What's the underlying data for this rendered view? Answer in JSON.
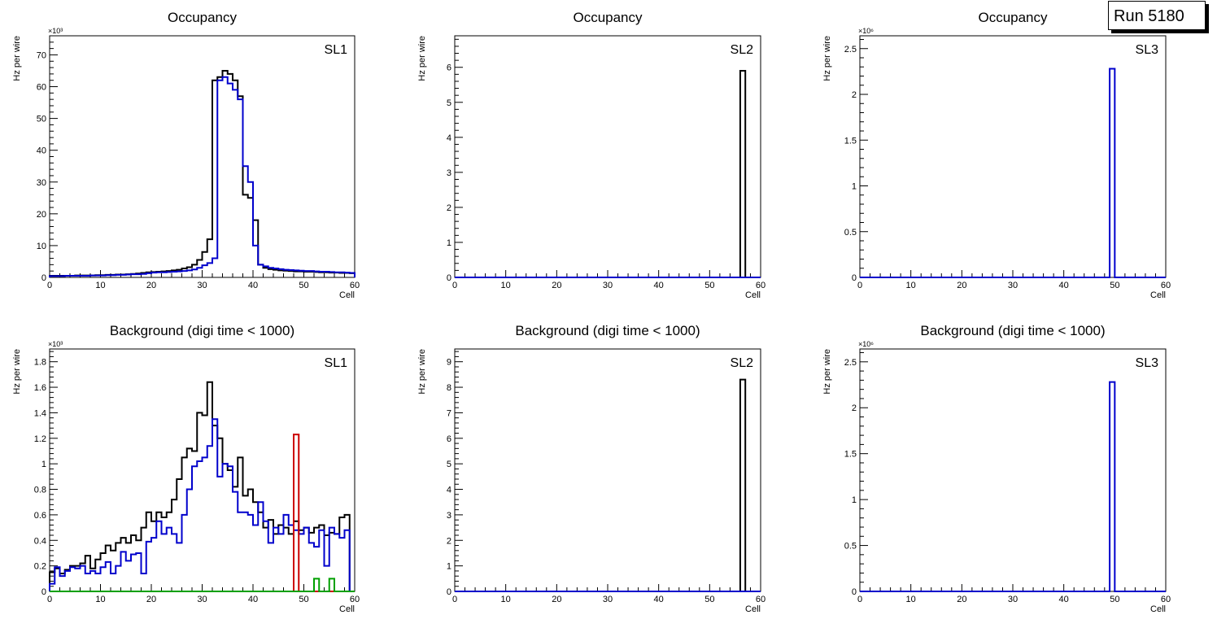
{
  "run_label": "Run 5180",
  "colors": {
    "black": "#000000",
    "blue": "#0000cc",
    "red": "#cc0000",
    "green": "#00a000"
  },
  "chart_data": [
    {
      "type": "histogram",
      "title": "Occupancy",
      "label": "SL1",
      "xlabel": "Cell",
      "ylabel": "Hz per wire",
      "exponent": "×10³",
      "xlim": [
        0,
        60
      ],
      "ylim": [
        0,
        76
      ],
      "xticks": [
        0,
        10,
        20,
        30,
        40,
        50,
        60
      ],
      "yticks": [
        0,
        10,
        20,
        30,
        40,
        50,
        60,
        70
      ],
      "series": [
        {
          "color": "black",
          "values": [
            0.5,
            0.5,
            0.5,
            0.5,
            0.5,
            0.6,
            0.6,
            0.6,
            0.6,
            0.7,
            0.7,
            0.8,
            0.8,
            0.9,
            0.9,
            1.0,
            1.1,
            1.2,
            1.4,
            1.6,
            1.7,
            1.8,
            1.9,
            2.0,
            2.2,
            2.4,
            2.8,
            3.2,
            4.0,
            5.5,
            8.0,
            12.0,
            62.0,
            63.0,
            65.0,
            64.0,
            62.0,
            57.0,
            26.0,
            25.0,
            18.0,
            4.0,
            3.0,
            2.6,
            2.4,
            2.2,
            2.1,
            2.0,
            1.9,
            1.9,
            1.8,
            1.8,
            1.7,
            1.6,
            1.6,
            1.5,
            1.5,
            1.4,
            1.4,
            1.3
          ]
        },
        {
          "color": "blue",
          "values": [
            0.4,
            0.4,
            0.4,
            0.5,
            0.5,
            0.5,
            0.5,
            0.5,
            0.6,
            0.6,
            0.6,
            0.7,
            0.7,
            0.8,
            0.8,
            0.9,
            1.0,
            1.0,
            1.1,
            1.3,
            1.5,
            1.6,
            1.6,
            1.7,
            1.8,
            1.9,
            2.0,
            2.2,
            2.5,
            3.0,
            3.8,
            4.5,
            6.0,
            62.0,
            63.0,
            61.0,
            59.0,
            56.0,
            35.0,
            30.0,
            10.0,
            4.0,
            3.5,
            3.0,
            2.8,
            2.6,
            2.4,
            2.3,
            2.2,
            2.1,
            2.0,
            2.0,
            1.9,
            1.8,
            1.8,
            1.7,
            1.6,
            1.6,
            1.5,
            1.4
          ]
        },
        {
          "color": "red",
          "values": []
        },
        {
          "color": "green",
          "values": []
        }
      ]
    },
    {
      "type": "histogram",
      "title": "Occupancy",
      "label": "SL2",
      "xlabel": "Cell",
      "ylabel": "Hz per wire",
      "exponent": "",
      "xlim": [
        0,
        60
      ],
      "ylim": [
        0,
        6.9
      ],
      "xticks": [
        0,
        10,
        20,
        30,
        40,
        50,
        60
      ],
      "yticks": [
        0,
        1,
        2,
        3,
        4,
        5,
        6
      ],
      "series": [
        {
          "color": "black",
          "values": [
            0,
            0,
            0,
            0,
            0,
            0,
            0,
            0,
            0,
            0,
            0,
            0,
            0,
            0,
            0,
            0,
            0,
            0,
            0,
            0,
            0,
            0,
            0,
            0,
            0,
            0,
            0,
            0,
            0,
            0,
            0,
            0,
            0,
            0,
            0,
            0,
            0,
            0,
            0,
            0,
            0,
            0,
            0,
            0,
            0,
            0,
            0,
            0,
            0,
            0,
            0,
            0,
            0,
            0,
            0,
            0,
            5.9,
            0,
            0,
            0
          ]
        },
        {
          "color": "blue",
          "values": [
            0,
            0,
            0,
            0,
            0,
            0,
            0,
            0,
            0,
            0,
            0,
            0,
            0,
            0,
            0,
            0,
            0,
            0,
            0,
            0,
            0,
            0,
            0,
            0,
            0,
            0,
            0,
            0,
            0,
            0,
            0,
            0,
            0,
            0,
            0,
            0,
            0,
            0,
            0,
            0,
            0,
            0,
            0,
            0,
            0,
            0,
            0,
            0,
            0,
            0,
            0,
            0,
            0,
            0,
            0,
            0,
            0,
            0,
            0,
            0
          ]
        }
      ]
    },
    {
      "type": "histogram",
      "title": "Occupancy",
      "label": "SL3",
      "xlabel": "Cell",
      "ylabel": "Hz per wire",
      "exponent": "×10⁶",
      "xlim": [
        0,
        60
      ],
      "ylim": [
        0,
        2.64
      ],
      "xticks": [
        0,
        10,
        20,
        30,
        40,
        50,
        60
      ],
      "yticks": [
        0,
        0.5,
        1,
        1.5,
        2,
        2.5
      ],
      "series": [
        {
          "color": "blue",
          "values": [
            0,
            0,
            0,
            0,
            0,
            0,
            0,
            0,
            0,
            0,
            0,
            0,
            0,
            0,
            0,
            0,
            0,
            0,
            0,
            0,
            0,
            0,
            0,
            0,
            0,
            0,
            0,
            0,
            0,
            0,
            0,
            0,
            0,
            0,
            0,
            0,
            0,
            0,
            0,
            0,
            0,
            0,
            0,
            0,
            0,
            0,
            0,
            0,
            0,
            2.28,
            0,
            0,
            0,
            0,
            0,
            0,
            0,
            0,
            0,
            0
          ]
        }
      ]
    },
    {
      "type": "histogram",
      "title": "Background (digi time < 1000)",
      "label": "SL1",
      "xlabel": "Cell",
      "ylabel": "Hz per wire",
      "exponent": "×10³",
      "xlim": [
        0,
        60
      ],
      "ylim": [
        0,
        1.9
      ],
      "xticks": [
        0,
        10,
        20,
        30,
        40,
        50,
        60
      ],
      "yticks": [
        0,
        0.2,
        0.4,
        0.6,
        0.8,
        1,
        1.2,
        1.4,
        1.6,
        1.8
      ],
      "series": [
        {
          "color": "black",
          "values": [
            0.15,
            0.18,
            0.14,
            0.17,
            0.2,
            0.2,
            0.22,
            0.28,
            0.18,
            0.25,
            0.3,
            0.36,
            0.32,
            0.38,
            0.42,
            0.38,
            0.44,
            0.4,
            0.5,
            0.62,
            0.55,
            0.62,
            0.58,
            0.62,
            0.72,
            0.88,
            1.05,
            1.12,
            1.1,
            1.4,
            1.38,
            1.64,
            1.3,
            1.2,
            1.0,
            0.95,
            0.82,
            1.05,
            0.75,
            0.8,
            0.7,
            0.62,
            0.5,
            0.56,
            0.45,
            0.52,
            0.5,
            0.45,
            0.55,
            0.48,
            0.5,
            0.46,
            0.5,
            0.52,
            0.44,
            0.46,
            0.45,
            0.58,
            0.6,
            0.0
          ]
        },
        {
          "color": "blue",
          "values": [
            0.06,
            0.19,
            0.12,
            0.16,
            0.19,
            0.18,
            0.2,
            0.14,
            0.16,
            0.14,
            0.19,
            0.23,
            0.14,
            0.2,
            0.31,
            0.24,
            0.29,
            0.3,
            0.14,
            0.39,
            0.42,
            0.55,
            0.45,
            0.5,
            0.45,
            0.38,
            0.6,
            0.8,
            0.98,
            1.02,
            1.05,
            1.14,
            1.35,
            0.9,
            1.0,
            0.98,
            0.78,
            0.62,
            0.62,
            0.6,
            0.52,
            0.7,
            0.55,
            0.38,
            0.5,
            0.45,
            0.6,
            0.52,
            0.48,
            0.45,
            0.5,
            0.38,
            0.35,
            0.48,
            0.2,
            0.5,
            0.45,
            0.42,
            0.48,
            0.0
          ]
        },
        {
          "color": "red",
          "values": [
            0,
            0,
            0,
            0,
            0,
            0,
            0,
            0,
            0,
            0,
            0,
            0,
            0,
            0,
            0,
            0,
            0,
            0,
            0,
            0,
            0,
            0,
            0,
            0,
            0,
            0,
            0,
            0,
            0,
            0,
            0,
            0,
            0,
            0,
            0,
            0,
            0,
            0,
            0,
            0,
            0,
            0,
            0,
            0,
            0,
            0,
            0,
            0,
            1.23,
            0,
            0,
            0,
            0,
            0,
            0,
            0,
            0,
            0,
            0,
            0
          ]
        },
        {
          "color": "green",
          "values": [
            0,
            0,
            0,
            0,
            0,
            0,
            0,
            0,
            0,
            0,
            0,
            0,
            0,
            0,
            0,
            0,
            0,
            0,
            0,
            0,
            0,
            0,
            0,
            0,
            0,
            0,
            0,
            0,
            0,
            0,
            0,
            0,
            0,
            0,
            0,
            0,
            0,
            0,
            0,
            0,
            0,
            0,
            0,
            0,
            0,
            0,
            0,
            0,
            0,
            0,
            0,
            0,
            0.1,
            0,
            0,
            0.1,
            0,
            0,
            0,
            0
          ]
        }
      ]
    },
    {
      "type": "histogram",
      "title": "Background (digi time < 1000)",
      "label": "SL2",
      "xlabel": "Cell",
      "ylabel": "Hz per wire",
      "exponent": "",
      "xlim": [
        0,
        60
      ],
      "ylim": [
        0,
        9.5
      ],
      "xticks": [
        0,
        10,
        20,
        30,
        40,
        50,
        60
      ],
      "yticks": [
        0,
        1,
        2,
        3,
        4,
        5,
        6,
        7,
        8,
        9
      ],
      "series": [
        {
          "color": "black",
          "values": [
            0,
            0,
            0,
            0,
            0,
            0,
            0,
            0,
            0,
            0,
            0,
            0,
            0,
            0,
            0,
            0,
            0,
            0,
            0,
            0,
            0,
            0,
            0,
            0,
            0,
            0,
            0,
            0,
            0,
            0,
            0,
            0,
            0,
            0,
            0,
            0,
            0,
            0,
            0,
            0,
            0,
            0,
            0,
            0,
            0,
            0,
            0,
            0,
            0,
            0,
            0,
            0,
            0,
            0,
            0,
            0,
            8.3,
            0,
            0,
            0
          ]
        },
        {
          "color": "blue",
          "values": [
            0,
            0,
            0,
            0,
            0,
            0,
            0,
            0,
            0,
            0,
            0,
            0,
            0,
            0,
            0,
            0,
            0,
            0,
            0,
            0,
            0,
            0,
            0,
            0,
            0,
            0,
            0,
            0,
            0,
            0,
            0,
            0,
            0,
            0,
            0,
            0,
            0,
            0,
            0,
            0,
            0,
            0,
            0,
            0,
            0,
            0,
            0,
            0,
            0,
            0,
            0,
            0,
            0,
            0,
            0,
            0,
            0,
            0,
            0,
            0
          ]
        }
      ]
    },
    {
      "type": "histogram",
      "title": "Background (digi time < 1000)",
      "label": "SL3",
      "xlabel": "Cell",
      "ylabel": "Hz per wire",
      "exponent": "×10⁶",
      "xlim": [
        0,
        60
      ],
      "ylim": [
        0,
        2.64
      ],
      "xticks": [
        0,
        10,
        20,
        30,
        40,
        50,
        60
      ],
      "yticks": [
        0,
        0.5,
        1,
        1.5,
        2,
        2.5
      ],
      "series": [
        {
          "color": "blue",
          "values": [
            0,
            0,
            0,
            0,
            0,
            0,
            0,
            0,
            0,
            0,
            0,
            0,
            0,
            0,
            0,
            0,
            0,
            0,
            0,
            0,
            0,
            0,
            0,
            0,
            0,
            0,
            0,
            0,
            0,
            0,
            0,
            0,
            0,
            0,
            0,
            0,
            0,
            0,
            0,
            0,
            0,
            0,
            0,
            0,
            0,
            0,
            0,
            0,
            0,
            2.28,
            0,
            0,
            0,
            0,
            0,
            0,
            0,
            0,
            0,
            0
          ]
        }
      ]
    }
  ]
}
